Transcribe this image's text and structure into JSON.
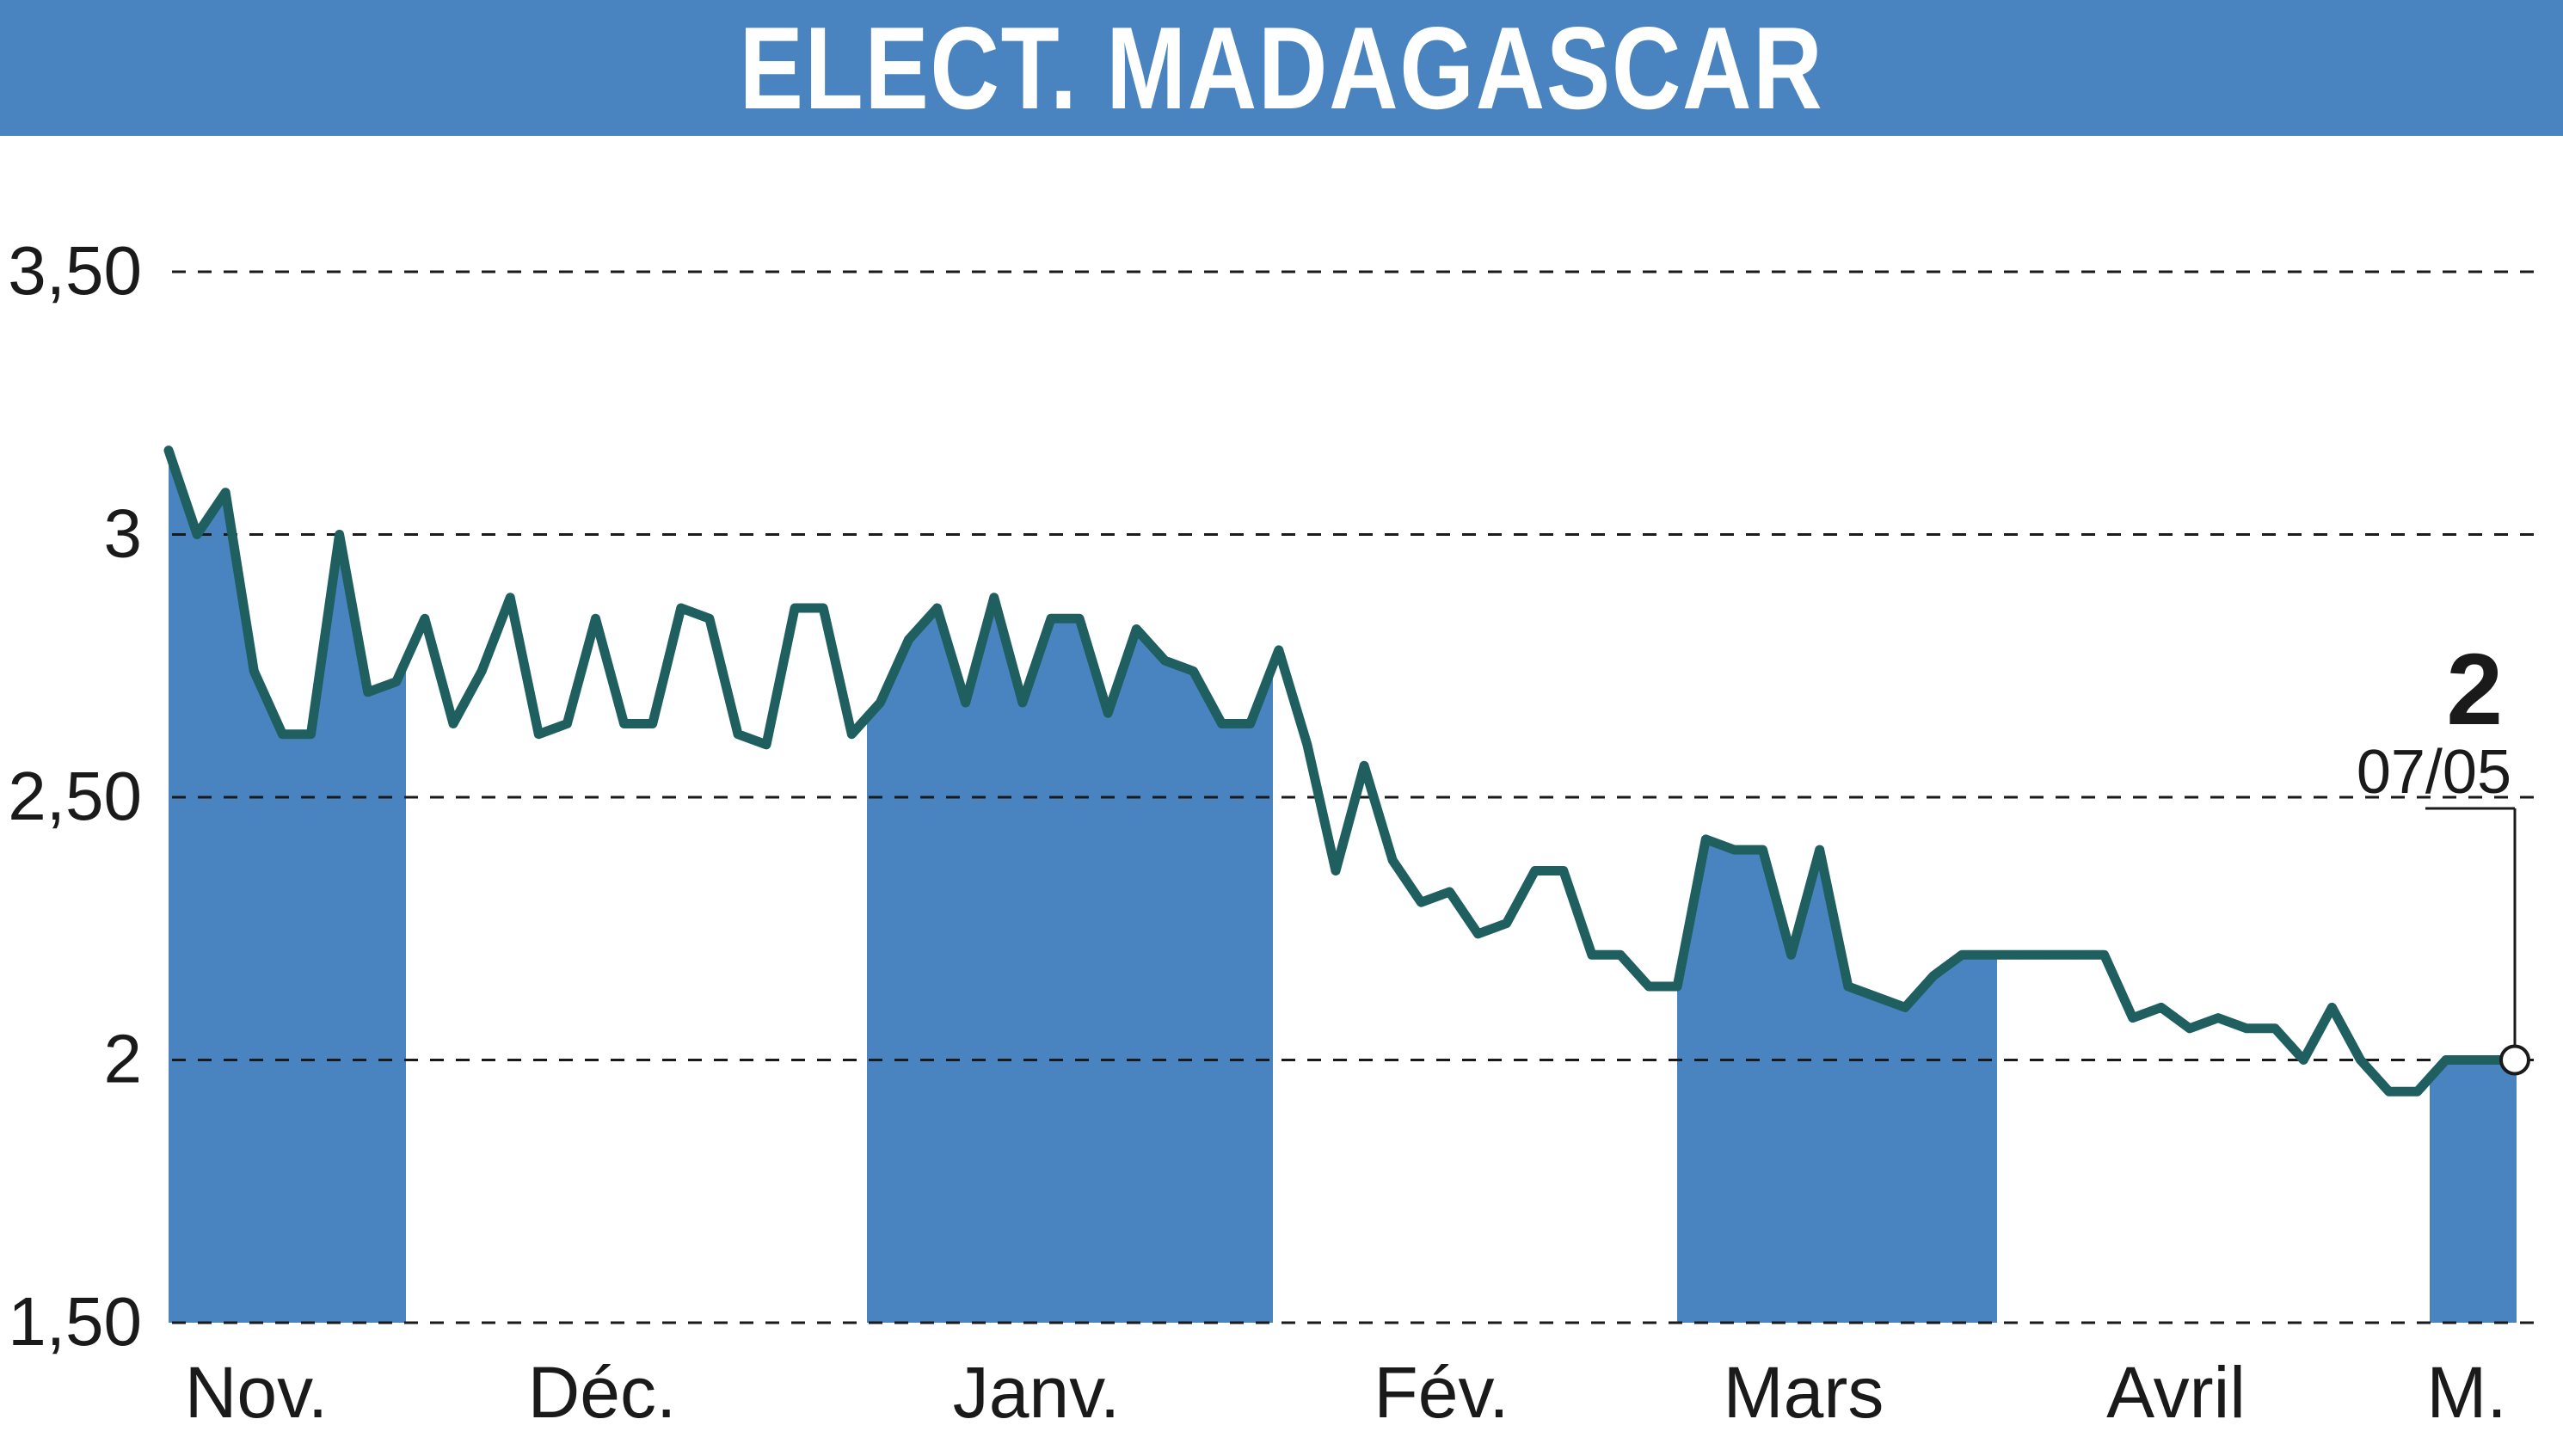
{
  "title": "ELECT. MADAGASCAR",
  "colors": {
    "title_bar": "#4a84c0",
    "title_text": "#ffffff",
    "month_band": "#4a84c0",
    "price_line": "#1f5f5f",
    "grid": "#1a1a1a",
    "watermark": "#e4e4e4"
  },
  "chart_data": {
    "type": "line",
    "title": "ELECT. MADAGASCAR",
    "xlabel": "",
    "ylabel": "",
    "ylim": [
      1.5,
      3.5
    ],
    "y_ticks": [
      {
        "value": 3.5,
        "label": "3,50"
      },
      {
        "value": 3.0,
        "label": "3"
      },
      {
        "value": 2.5,
        "label": "2,50"
      },
      {
        "value": 2.0,
        "label": "2"
      },
      {
        "value": 1.5,
        "label": "1,50"
      }
    ],
    "grid": "dashed horizontal",
    "month_labels": [
      "Nov.",
      "Déc.",
      "Janv.",
      "Fév.",
      "Mars",
      "Avril",
      "M."
    ],
    "shaded_months": [
      "Nov.",
      "Janv.",
      "Mars",
      "M."
    ],
    "series": [
      {
        "values": [
          3.16,
          3.0,
          3.08,
          2.74,
          2.62,
          2.62,
          3.0,
          2.7,
          2.72,
          2.84,
          2.64,
          2.74,
          2.88,
          2.62,
          2.64,
          2.84,
          2.64,
          2.64,
          2.86,
          2.84,
          2.62,
          2.6,
          2.86,
          2.86,
          2.62,
          2.68,
          2.8,
          2.86,
          2.68,
          2.88,
          2.68,
          2.84,
          2.84,
          2.66,
          2.82,
          2.76,
          2.74,
          2.64,
          2.64,
          2.78,
          2.6,
          2.36,
          2.56,
          2.38,
          2.3,
          2.32,
          2.24,
          2.26,
          2.36,
          2.36,
          2.2,
          2.2,
          2.14,
          2.14,
          2.42,
          2.4,
          2.4,
          2.2,
          2.4,
          2.14,
          2.12,
          2.1,
          2.16,
          2.2,
          2.2,
          2.2,
          2.2,
          2.2,
          2.2,
          2.08,
          2.1,
          2.06,
          2.08,
          2.06,
          2.06,
          2.0,
          2.1,
          2.0,
          1.94,
          1.94,
          2.0,
          2.0,
          2.0
        ]
      }
    ],
    "last_value": {
      "value": "2",
      "date": "07/05"
    }
  }
}
